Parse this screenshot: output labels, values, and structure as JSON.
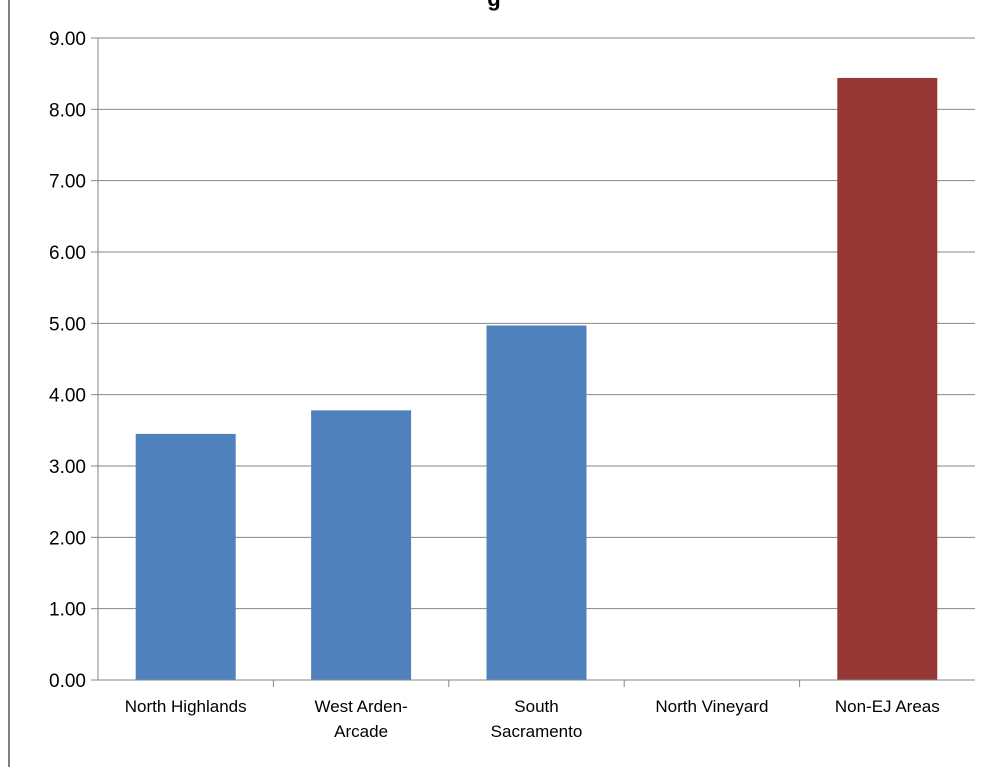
{
  "chart_data": {
    "type": "bar",
    "title": "g",
    "categories": [
      "North Highlands",
      "West Arden-Arcade",
      "South Sacramento",
      "North Vineyard",
      "Non-EJ Areas"
    ],
    "category_label_lines": [
      [
        "North Highlands"
      ],
      [
        "West Arden-",
        "Arcade"
      ],
      [
        "South",
        "Sacramento"
      ],
      [
        "North Vineyard"
      ],
      [
        "Non-EJ Areas"
      ]
    ],
    "values": [
      3.45,
      3.78,
      4.97,
      0,
      8.44
    ],
    "bar_colors": [
      "#4f81bd",
      "#4f81bd",
      "#4f81bd",
      "#4f81bd",
      "#953735"
    ],
    "ylim": [
      0,
      9
    ],
    "yticks": [
      "0.00",
      "1.00",
      "2.00",
      "3.00",
      "4.00",
      "5.00",
      "6.00",
      "7.00",
      "8.00",
      "9.00"
    ],
    "grid": true,
    "legend": "none",
    "colors": {
      "gridline": "#868686",
      "axis": "#868686"
    }
  }
}
